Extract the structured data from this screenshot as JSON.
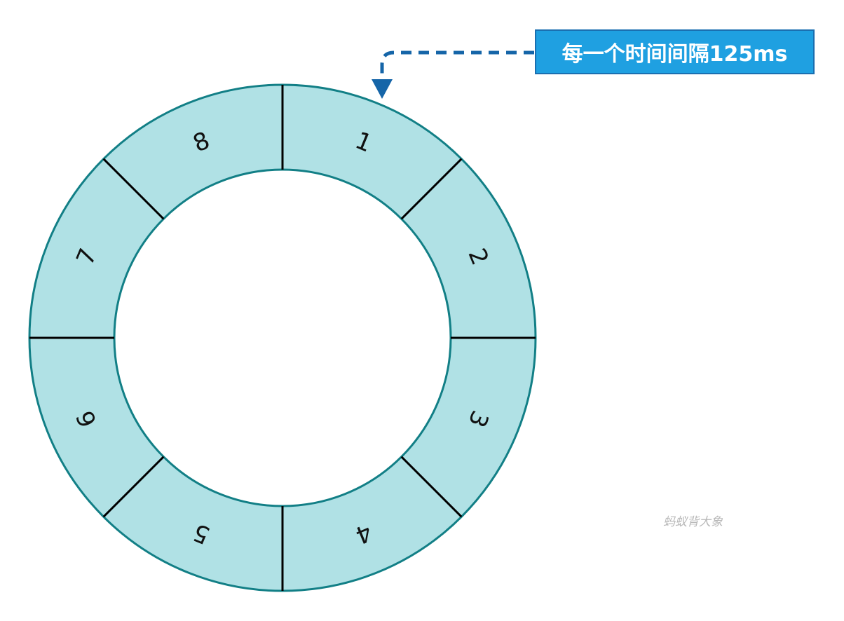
{
  "diagram": {
    "slots": [
      "1",
      "2",
      "3",
      "4",
      "5",
      "6",
      "7",
      "8"
    ],
    "ring_fill_color": "#b0e1e5",
    "ring_stroke_color": "#127f86",
    "divider_color": "#000000"
  },
  "callout": {
    "text": "每一个时间间隔125ms",
    "background_color": "#1fa0e1",
    "arrow_color": "#1565a8"
  },
  "watermark": {
    "text": "蚂蚁背大象"
  }
}
